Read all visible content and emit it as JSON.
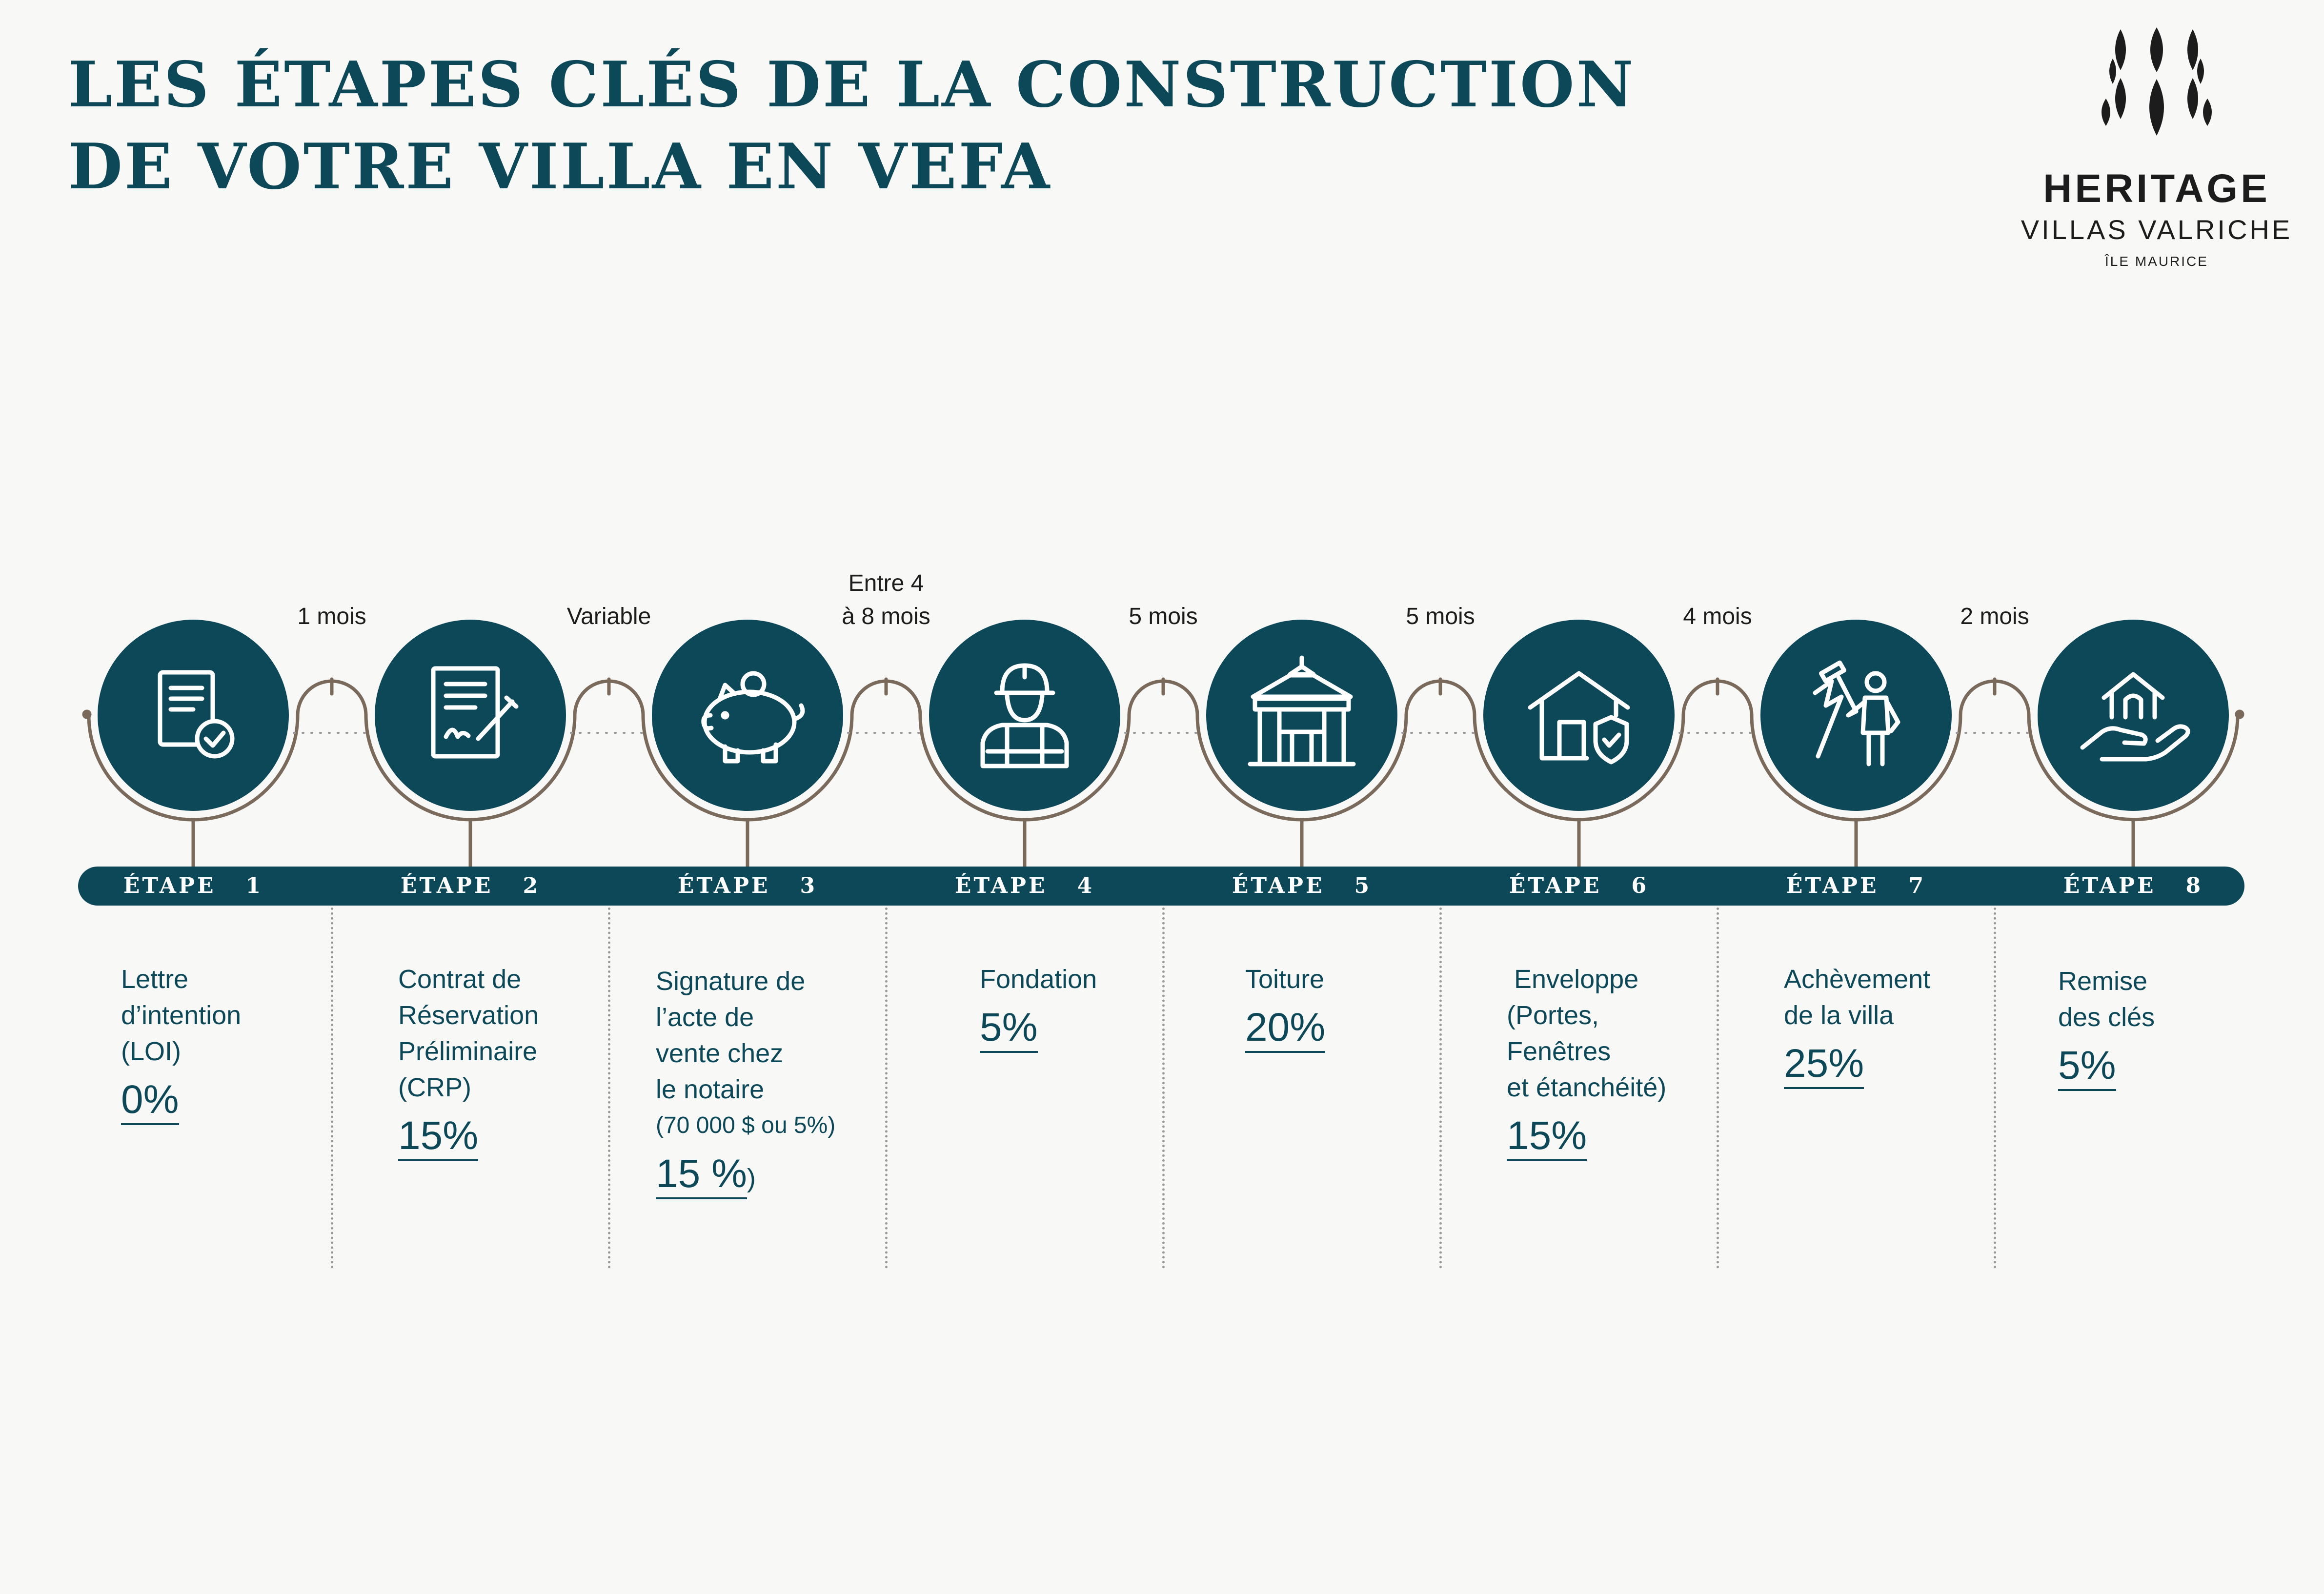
{
  "title": {
    "line1": "LES ÉTAPES CLÉS DE LA CONSTRUCTION",
    "line2": "DE VOTRE VILLA EN VEFA"
  },
  "logo": {
    "line1": "HERITAGE",
    "line2": "VILLAS VALRICHE",
    "line3": "ÎLE MAURICE"
  },
  "colors": {
    "primary": "#0d4858",
    "line": "#7a6a5c",
    "background": "#f8f8f6"
  },
  "durations": [
    {
      "text": "1 mois"
    },
    {
      "text": "Variable"
    },
    {
      "text": "Entre 4\nà 8 mois"
    },
    {
      "text": "5 mois"
    },
    {
      "text": "5 mois"
    },
    {
      "text": "4 mois"
    },
    {
      "text": "2 mois"
    }
  ],
  "steps": [
    {
      "label": "ÉTAPE   1",
      "icon": "document-check-icon",
      "description": "Lettre\nd’intention\n(LOI)",
      "percent": "0%"
    },
    {
      "label": "ÉTAPE   2",
      "icon": "contract-signature-icon",
      "description": "Contrat de\nRéservation\nPréliminaire\n(CRP)",
      "percent": "15%"
    },
    {
      "label": "ÉTAPE   3",
      "icon": "piggy-bank-icon",
      "description": "Signature de\nl’acte de\nvente chez\nle notaire\n(70 000 $ ou 5%)",
      "percent": "15 %",
      "percent_suffix": ")"
    },
    {
      "label": "ÉTAPE   4",
      "icon": "construction-worker-icon",
      "description": "Fondation",
      "percent": "5%"
    },
    {
      "label": "ÉTAPE   5",
      "icon": "gazebo-roof-icon",
      "description": "Toiture",
      "percent": "20%"
    },
    {
      "label": "ÉTAPE   6",
      "icon": "house-shield-icon",
      "description": " Enveloppe\n(Portes,\nFenêtres\net étanchéité)",
      "percent": "15%"
    },
    {
      "label": "ÉTAPE   7",
      "icon": "painter-icon",
      "description": "Achèvement\nde la villa",
      "percent": "25%"
    },
    {
      "label": "ÉTAPE   8",
      "icon": "hand-house-icon",
      "description": "Remise\ndes clés",
      "percent": "5%"
    }
  ]
}
